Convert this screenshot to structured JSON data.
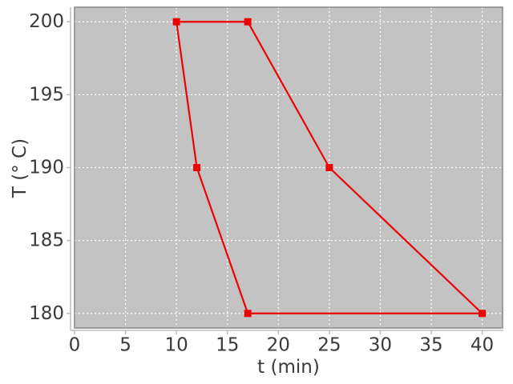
{
  "figure": {
    "background": "#ffffff"
  },
  "chart_data": {
    "type": "line",
    "title": "",
    "xlabel": "t (min)",
    "ylabel": "T (° C)",
    "xlim": [
      0,
      42
    ],
    "ylim": [
      179,
      201
    ],
    "xticks": [
      0,
      5,
      10,
      15,
      20,
      25,
      30,
      35,
      40
    ],
    "yticks": [
      180,
      185,
      190,
      195,
      200
    ],
    "grid": true,
    "legend": false,
    "series": [
      {
        "color": "#ec0404",
        "marker": "filled-square",
        "points": [
          [
            10,
            200
          ],
          [
            17,
            200
          ],
          [
            25,
            190
          ],
          [
            40,
            180
          ],
          [
            17,
            180
          ],
          [
            12,
            190
          ],
          [
            10,
            200
          ]
        ]
      }
    ],
    "style": {
      "plot_background": "#c3c3c3",
      "grid_color": "#ffffff",
      "grid_dash": "2 3",
      "frame_color": "#878787",
      "axis_line_color": "#bdbdbd",
      "tick_label_color": "#3a3a3a",
      "tick_font_size": 23,
      "marker_size": 9,
      "line_width": 2.2
    }
  }
}
